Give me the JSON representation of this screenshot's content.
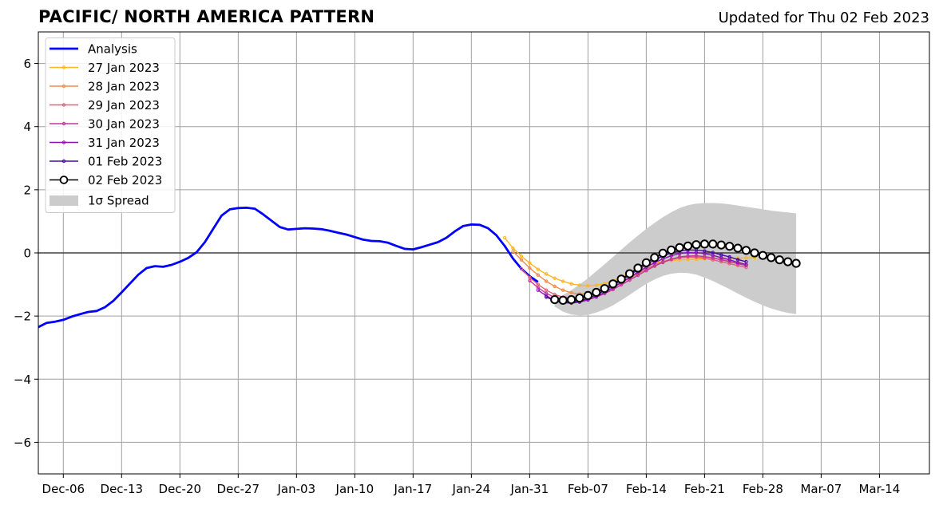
{
  "title_left": "PACIFIC/ NORTH AMERICA PATTERN",
  "title_right": "Updated for Thu 02 Feb 2023",
  "chart_data": {
    "type": "line",
    "xlim": [
      "2023-12-03",
      "2024-03-19"
    ],
    "ylim": [
      -7,
      7
    ],
    "grid": true,
    "legend_position": "top-left",
    "x_ticks": [
      "2023-12-06",
      "2023-12-13",
      "2023-12-20",
      "2023-12-27",
      "2024-01-03",
      "2024-01-10",
      "2024-01-17",
      "2024-01-24",
      "2024-01-31",
      "2024-02-07",
      "2024-02-14",
      "2024-02-21",
      "2024-02-28",
      "2024-03-06",
      "2024-03-13"
    ],
    "x_tick_labels": [
      "Dec-06",
      "Dec-13",
      "Dec-20",
      "Dec-27",
      "Jan-03",
      "Jan-10",
      "Jan-17",
      "Jan-24",
      "Jan-31",
      "Feb-07",
      "Feb-14",
      "Feb-21",
      "Feb-28",
      "Mar-07",
      "Mar-14"
    ],
    "y_ticks": [
      -6,
      -4,
      -2,
      0,
      2,
      4,
      6
    ],
    "y_tick_labels": [
      "−6",
      "−4",
      "−2",
      "0",
      "2",
      "4",
      "6"
    ],
    "analysis": {
      "name": "Analysis",
      "color": "#0000ff",
      "x": [
        "2023-12-03",
        "2023-12-04",
        "2023-12-05",
        "2023-12-06",
        "2023-12-07",
        "2023-12-08",
        "2023-12-09",
        "2023-12-10",
        "2023-12-11",
        "2023-12-12",
        "2023-12-13",
        "2023-12-14",
        "2023-12-15",
        "2023-12-16",
        "2023-12-17",
        "2023-12-18",
        "2023-12-19",
        "2023-12-20",
        "2023-12-21",
        "2023-12-22",
        "2023-12-23",
        "2023-12-24",
        "2023-12-25",
        "2023-12-26",
        "2023-12-27",
        "2023-12-28",
        "2023-12-29",
        "2023-12-30",
        "2023-12-31",
        "2024-01-01",
        "2024-01-02",
        "2024-01-03",
        "2024-01-04",
        "2024-01-05",
        "2024-01-06",
        "2024-01-07",
        "2024-01-08",
        "2024-01-09",
        "2024-01-10",
        "2024-01-11",
        "2024-01-12",
        "2024-01-13",
        "2024-01-14",
        "2024-01-15",
        "2024-01-16",
        "2024-01-17",
        "2024-01-18",
        "2024-01-19",
        "2024-01-20",
        "2024-01-21",
        "2024-01-22",
        "2024-01-23",
        "2024-01-24",
        "2024-01-25",
        "2024-01-26",
        "2024-01-27",
        "2024-01-28",
        "2024-01-29",
        "2024-01-30",
        "2024-01-31",
        "2024-02-01"
      ],
      "y": [
        -2.35,
        -2.22,
        -2.18,
        -2.12,
        -2.02,
        -1.94,
        -1.87,
        -1.84,
        -1.72,
        -1.52,
        -1.25,
        -0.97,
        -0.69,
        -0.48,
        -0.42,
        -0.44,
        -0.38,
        -0.28,
        -0.16,
        0.02,
        0.34,
        0.76,
        1.18,
        1.38,
        1.42,
        1.43,
        1.4,
        1.22,
        1.02,
        0.82,
        0.74,
        0.76,
        0.78,
        0.77,
        0.75,
        0.7,
        0.64,
        0.58,
        0.5,
        0.42,
        0.38,
        0.37,
        0.32,
        0.22,
        0.13,
        0.11,
        0.18,
        0.26,
        0.34,
        0.48,
        0.68,
        0.85,
        0.9,
        0.89,
        0.78,
        0.56,
        0.22,
        -0.18,
        -0.5,
        -0.74,
        -0.92
      ]
    },
    "forecast_start": "2024-01-28",
    "forecasts": [
      {
        "name": "27 Jan 2023",
        "color": "#ffb525",
        "y": [
          0.48,
          0.15,
          -0.1,
          -0.32,
          -0.52,
          -0.67,
          -0.8,
          -0.9,
          -0.98,
          -1.02,
          -1.04,
          -1.02,
          -0.97,
          -0.88,
          -0.77,
          -0.63,
          -0.49,
          -0.39,
          -0.32,
          -0.27,
          -0.24,
          -0.22,
          -0.21,
          -0.2,
          -0.19,
          -0.18,
          -0.18,
          -0.17,
          -0.17,
          -0.16,
          -0.15
        ]
      },
      {
        "name": "28 Jan 2023",
        "color": "#f08c4a",
        "y": [
          0.05,
          -0.22,
          -0.48,
          -0.7,
          -0.9,
          -1.06,
          -1.18,
          -1.26,
          -1.3,
          -1.3,
          -1.25,
          -1.17,
          -1.06,
          -0.94,
          -0.8,
          -0.66,
          -0.52,
          -0.4,
          -0.3,
          -0.22,
          -0.16,
          -0.13,
          -0.12,
          -0.13,
          -0.16,
          -0.2,
          -0.26,
          -0.32,
          -0.38
        ]
      },
      {
        "name": "29 Jan 2023",
        "color": "#e0607a",
        "y": [
          -0.5,
          -0.78,
          -1.0,
          -1.18,
          -1.32,
          -1.4,
          -1.43,
          -1.42,
          -1.37,
          -1.29,
          -1.19,
          -1.07,
          -0.93,
          -0.79,
          -0.65,
          -0.51,
          -0.38,
          -0.28,
          -0.2,
          -0.15,
          -0.13,
          -0.14,
          -0.17,
          -0.22,
          -0.28,
          -0.34,
          -0.4,
          -0.46
        ]
      },
      {
        "name": "30 Jan 2023",
        "color": "#c0379a",
        "y": [
          -0.88,
          -1.1,
          -1.28,
          -1.41,
          -1.5,
          -1.54,
          -1.53,
          -1.48,
          -1.4,
          -1.29,
          -1.16,
          -1.01,
          -0.86,
          -0.71,
          -0.56,
          -0.42,
          -0.3,
          -0.2,
          -0.13,
          -0.1,
          -0.09,
          -0.12,
          -0.16,
          -0.22,
          -0.28,
          -0.34,
          -0.4
        ]
      },
      {
        "name": "31 Jan 2023",
        "color": "#8c10b8",
        "y": [
          -1.18,
          -1.36,
          -1.5,
          -1.57,
          -1.59,
          -1.56,
          -1.49,
          -1.38,
          -1.25,
          -1.1,
          -0.94,
          -0.78,
          -0.61,
          -0.45,
          -0.31,
          -0.19,
          -0.09,
          -0.02,
          0.01,
          0.01,
          -0.02,
          -0.08,
          -0.15,
          -0.22,
          -0.3,
          -0.37
        ]
      },
      {
        "name": "01 Feb 2023",
        "color": "#4a0aa0",
        "y": [
          -1.4,
          -1.52,
          -1.58,
          -1.58,
          -1.53,
          -1.44,
          -1.33,
          -1.19,
          -1.03,
          -0.87,
          -0.7,
          -0.53,
          -0.37,
          -0.22,
          -0.1,
          0.0,
          0.06,
          0.09,
          0.09,
          0.06,
          0.01,
          -0.06,
          -0.13,
          -0.21,
          -0.28
        ]
      }
    ],
    "current_forecast": {
      "name": "02 Feb 2023",
      "start": "2024-02-03",
      "color": "#000000",
      "marker_face": "#ffffff",
      "y": [
        -1.48,
        -1.5,
        -1.48,
        -1.43,
        -1.35,
        -1.25,
        -1.13,
        -0.98,
        -0.83,
        -0.66,
        -0.48,
        -0.31,
        -0.15,
        -0.01,
        0.09,
        0.17,
        0.22,
        0.26,
        0.28,
        0.28,
        0.25,
        0.21,
        0.15,
        0.08,
        0.0,
        -0.08,
        -0.15,
        -0.22,
        -0.28,
        -0.33
      ]
    },
    "spread": {
      "name": "1σ Spread",
      "color": "#cccccc",
      "upper": [
        -1.48,
        -1.34,
        -1.18,
        -1.0,
        -0.8,
        -0.58,
        -0.36,
        -0.13,
        0.1,
        0.33,
        0.55,
        0.76,
        0.95,
        1.13,
        1.29,
        1.42,
        1.51,
        1.56,
        1.58,
        1.58,
        1.57,
        1.54,
        1.5,
        1.46,
        1.42,
        1.38,
        1.34,
        1.31,
        1.28,
        1.25
      ],
      "lower": [
        -1.7,
        -1.86,
        -1.95,
        -1.98,
        -1.96,
        -1.89,
        -1.79,
        -1.66,
        -1.5,
        -1.33,
        -1.15,
        -0.98,
        -0.84,
        -0.73,
        -0.66,
        -0.63,
        -0.64,
        -0.69,
        -0.78,
        -0.89,
        -1.02,
        -1.15,
        -1.29,
        -1.42,
        -1.55,
        -1.66,
        -1.76,
        -1.84,
        -1.9,
        -1.94
      ]
    }
  }
}
